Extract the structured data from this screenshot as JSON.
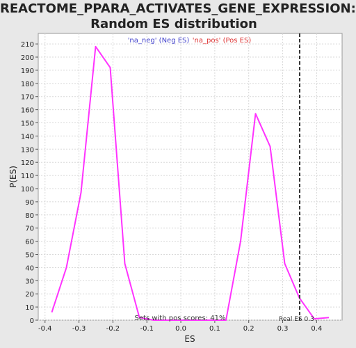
{
  "chart_data": {
    "type": "line",
    "title_line1": "REACTOME_PPARA_ACTIVATES_GENE_EXPRESSION:",
    "title_line2": "Random ES distribution",
    "xlabel": "ES",
    "ylabel": "P(ES)",
    "xlim": [
      -0.42,
      0.475
    ],
    "ylim": [
      0,
      218
    ],
    "xticks": [
      -0.4,
      -0.3,
      -0.2,
      -0.1,
      0.0,
      0.1,
      0.2,
      0.3,
      0.4
    ],
    "xtick_labels": [
      "-0.4",
      "-0.3",
      "-0.2",
      "-0.1",
      "0.0",
      "0.1",
      "0.2",
      "0.3",
      "0.4"
    ],
    "yticks": [
      0,
      10,
      20,
      30,
      40,
      50,
      60,
      70,
      80,
      90,
      100,
      110,
      120,
      130,
      140,
      150,
      160,
      170,
      180,
      190,
      200,
      210
    ],
    "grid": true,
    "legend": [
      {
        "label": "'na_neg' (Neg ES)",
        "color": "#4444cc"
      },
      {
        "label": "'na_pos' (Pos ES)",
        "color": "#dd3333"
      }
    ],
    "series": [
      {
        "color": "#ff33ff",
        "x": [
          -0.38,
          -0.337,
          -0.294,
          -0.251,
          -0.208,
          -0.165,
          -0.122,
          -0.08,
          0.133,
          0.176,
          0.22,
          0.263,
          0.306,
          0.349,
          0.393,
          0.436
        ],
        "y": [
          6,
          40,
          97,
          208,
          192,
          43,
          2,
          0,
          0,
          60,
          157,
          132,
          43,
          17,
          1,
          2
        ]
      }
    ],
    "real_es": 0.35,
    "real_es_label": "Real ES 0.3",
    "annotation": "Sets with pos scores: 41%"
  }
}
